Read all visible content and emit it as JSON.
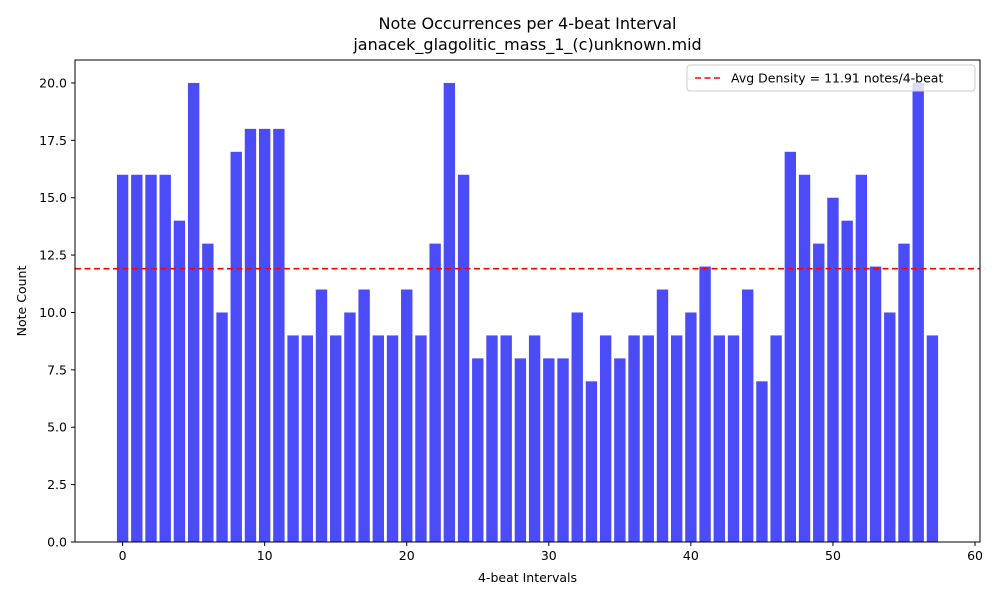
{
  "chart_data": {
    "type": "bar",
    "title": "Note Occurrences per 4-beat Interval",
    "subtitle": "janacek_glagolitic_mass_1_(c)unknown.mid",
    "xlabel": "4-beat Intervals",
    "ylabel": "Note Count",
    "x": [
      0,
      1,
      2,
      3,
      4,
      5,
      6,
      7,
      8,
      9,
      10,
      11,
      12,
      13,
      14,
      15,
      16,
      17,
      18,
      19,
      20,
      21,
      22,
      23,
      24,
      25,
      26,
      27,
      28,
      29,
      30,
      31,
      32,
      33,
      34,
      35,
      36,
      37,
      38,
      39,
      40,
      41,
      42,
      43,
      44,
      45,
      46,
      47,
      48,
      49,
      50,
      51,
      52,
      53,
      54,
      55,
      56,
      57
    ],
    "values": [
      16,
      16,
      16,
      16,
      14,
      20,
      13,
      10,
      17,
      18,
      18,
      18,
      9,
      9,
      11,
      9,
      10,
      11,
      9,
      9,
      11,
      9,
      13,
      20,
      16,
      8,
      9,
      9,
      8,
      9,
      8,
      8,
      10,
      7,
      9,
      8,
      9,
      9,
      11,
      9,
      10,
      12,
      9,
      9,
      11,
      7,
      9,
      17,
      16,
      13,
      15,
      14,
      16,
      12,
      10,
      13,
      20,
      9
    ],
    "xlim": [
      -3.35,
      60.35
    ],
    "ylim": [
      0,
      21
    ],
    "xticks": [
      0,
      10,
      20,
      30,
      40,
      50,
      60
    ],
    "yticks": [
      0.0,
      2.5,
      5.0,
      7.5,
      10.0,
      12.5,
      15.0,
      17.5,
      20.0
    ],
    "bar_color": "#4b4bf8",
    "average": {
      "value": 11.91,
      "label": "Avg Density = 11.91 notes/4-beat",
      "color": "#ff0000",
      "style": "dashed"
    },
    "legend_position": "top-right",
    "grid": false
  }
}
